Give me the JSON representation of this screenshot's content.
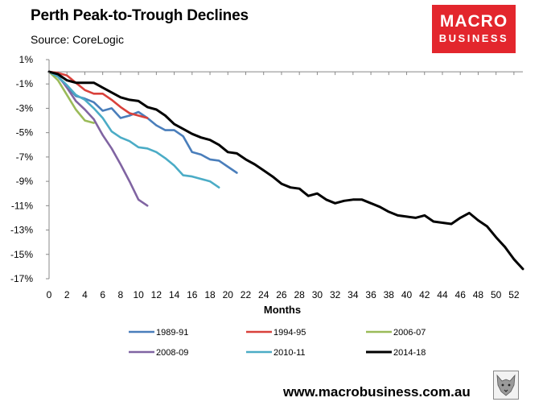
{
  "chart_data": {
    "type": "line",
    "title": "Perth Peak-to-Trough Declines",
    "subtitle": "Source: CoreLogic",
    "xlabel": "Months",
    "ylabel": "",
    "xlim": [
      0,
      53
    ],
    "ylim": [
      -17,
      1
    ],
    "x_ticks": [
      0,
      2,
      4,
      6,
      8,
      10,
      12,
      14,
      16,
      18,
      20,
      22,
      24,
      26,
      28,
      30,
      32,
      34,
      36,
      38,
      40,
      42,
      44,
      46,
      48,
      50,
      52
    ],
    "y_ticks": [
      1,
      -1,
      -3,
      -5,
      -7,
      -9,
      -11,
      -13,
      -15,
      -17
    ],
    "y_tick_labels": [
      "1%",
      "-1%",
      "-3%",
      "-5%",
      "-7%",
      "-9%",
      "-11%",
      "-13%",
      "-15%",
      "-17%"
    ],
    "series": [
      {
        "name": "1989-91",
        "color": "#4a7ebb",
        "values": [
          0,
          -0.4,
          -1.2,
          -2.0,
          -2.2,
          -2.5,
          -3.2,
          -3.0,
          -3.8,
          -3.6,
          -3.3,
          -3.8,
          -4.4,
          -4.8,
          -4.8,
          -5.3,
          -6.6,
          -6.8,
          -7.2,
          -7.3,
          -7.8,
          -8.3
        ]
      },
      {
        "name": "1994-95",
        "color": "#d9413b",
        "values": [
          0,
          -0.1,
          -0.3,
          -0.9,
          -1.5,
          -1.8,
          -1.8,
          -2.3,
          -2.9,
          -3.4,
          -3.6,
          -3.8
        ]
      },
      {
        "name": "2006-07",
        "color": "#9bbb59",
        "values": [
          0,
          -0.7,
          -1.9,
          -3.1,
          -4.0,
          -4.2
        ]
      },
      {
        "name": "2008-09",
        "color": "#8064a2",
        "values": [
          0,
          -0.3,
          -1.3,
          -2.4,
          -3.1,
          -3.9,
          -5.2,
          -6.3,
          -7.6,
          -9.0,
          -10.5,
          -11.0
        ]
      },
      {
        "name": "2010-11",
        "color": "#4bacc6",
        "values": [
          0,
          -0.4,
          -1.1,
          -1.9,
          -2.3,
          -3.0,
          -3.8,
          -4.9,
          -5.4,
          -5.7,
          -6.2,
          -6.3,
          -6.6,
          -7.1,
          -7.7,
          -8.5,
          -8.6,
          -8.8,
          -9.0,
          -9.5
        ]
      },
      {
        "name": "2014-18",
        "color": "#000000",
        "values": [
          0,
          -0.2,
          -0.7,
          -0.9,
          -0.9,
          -0.9,
          -1.3,
          -1.7,
          -2.1,
          -2.3,
          -2.4,
          -2.9,
          -3.1,
          -3.6,
          -4.3,
          -4.7,
          -5.1,
          -5.4,
          -5.6,
          -6.0,
          -6.6,
          -6.7,
          -7.2,
          -7.6,
          -8.1,
          -8.6,
          -9.2,
          -9.5,
          -9.6,
          -10.2,
          -10.0,
          -10.5,
          -10.8,
          -10.6,
          -10.5,
          -10.5,
          -10.8,
          -11.1,
          -11.5,
          -11.8,
          -11.9,
          -12.0,
          -11.8,
          -12.3,
          -12.4,
          -12.5,
          -12.0,
          -11.6,
          -12.2,
          -12.7,
          -13.6,
          -14.4,
          -15.4,
          -16.2
        ]
      }
    ]
  },
  "header": {
    "title": "Perth Peak-to-Trough Declines",
    "source": "Source: CoreLogic"
  },
  "logo": {
    "line1": "MACRO",
    "line2": "BUSINESS",
    "bg_color": "#e3262d"
  },
  "footer": {
    "url": "www.macrobusiness.com.au"
  }
}
